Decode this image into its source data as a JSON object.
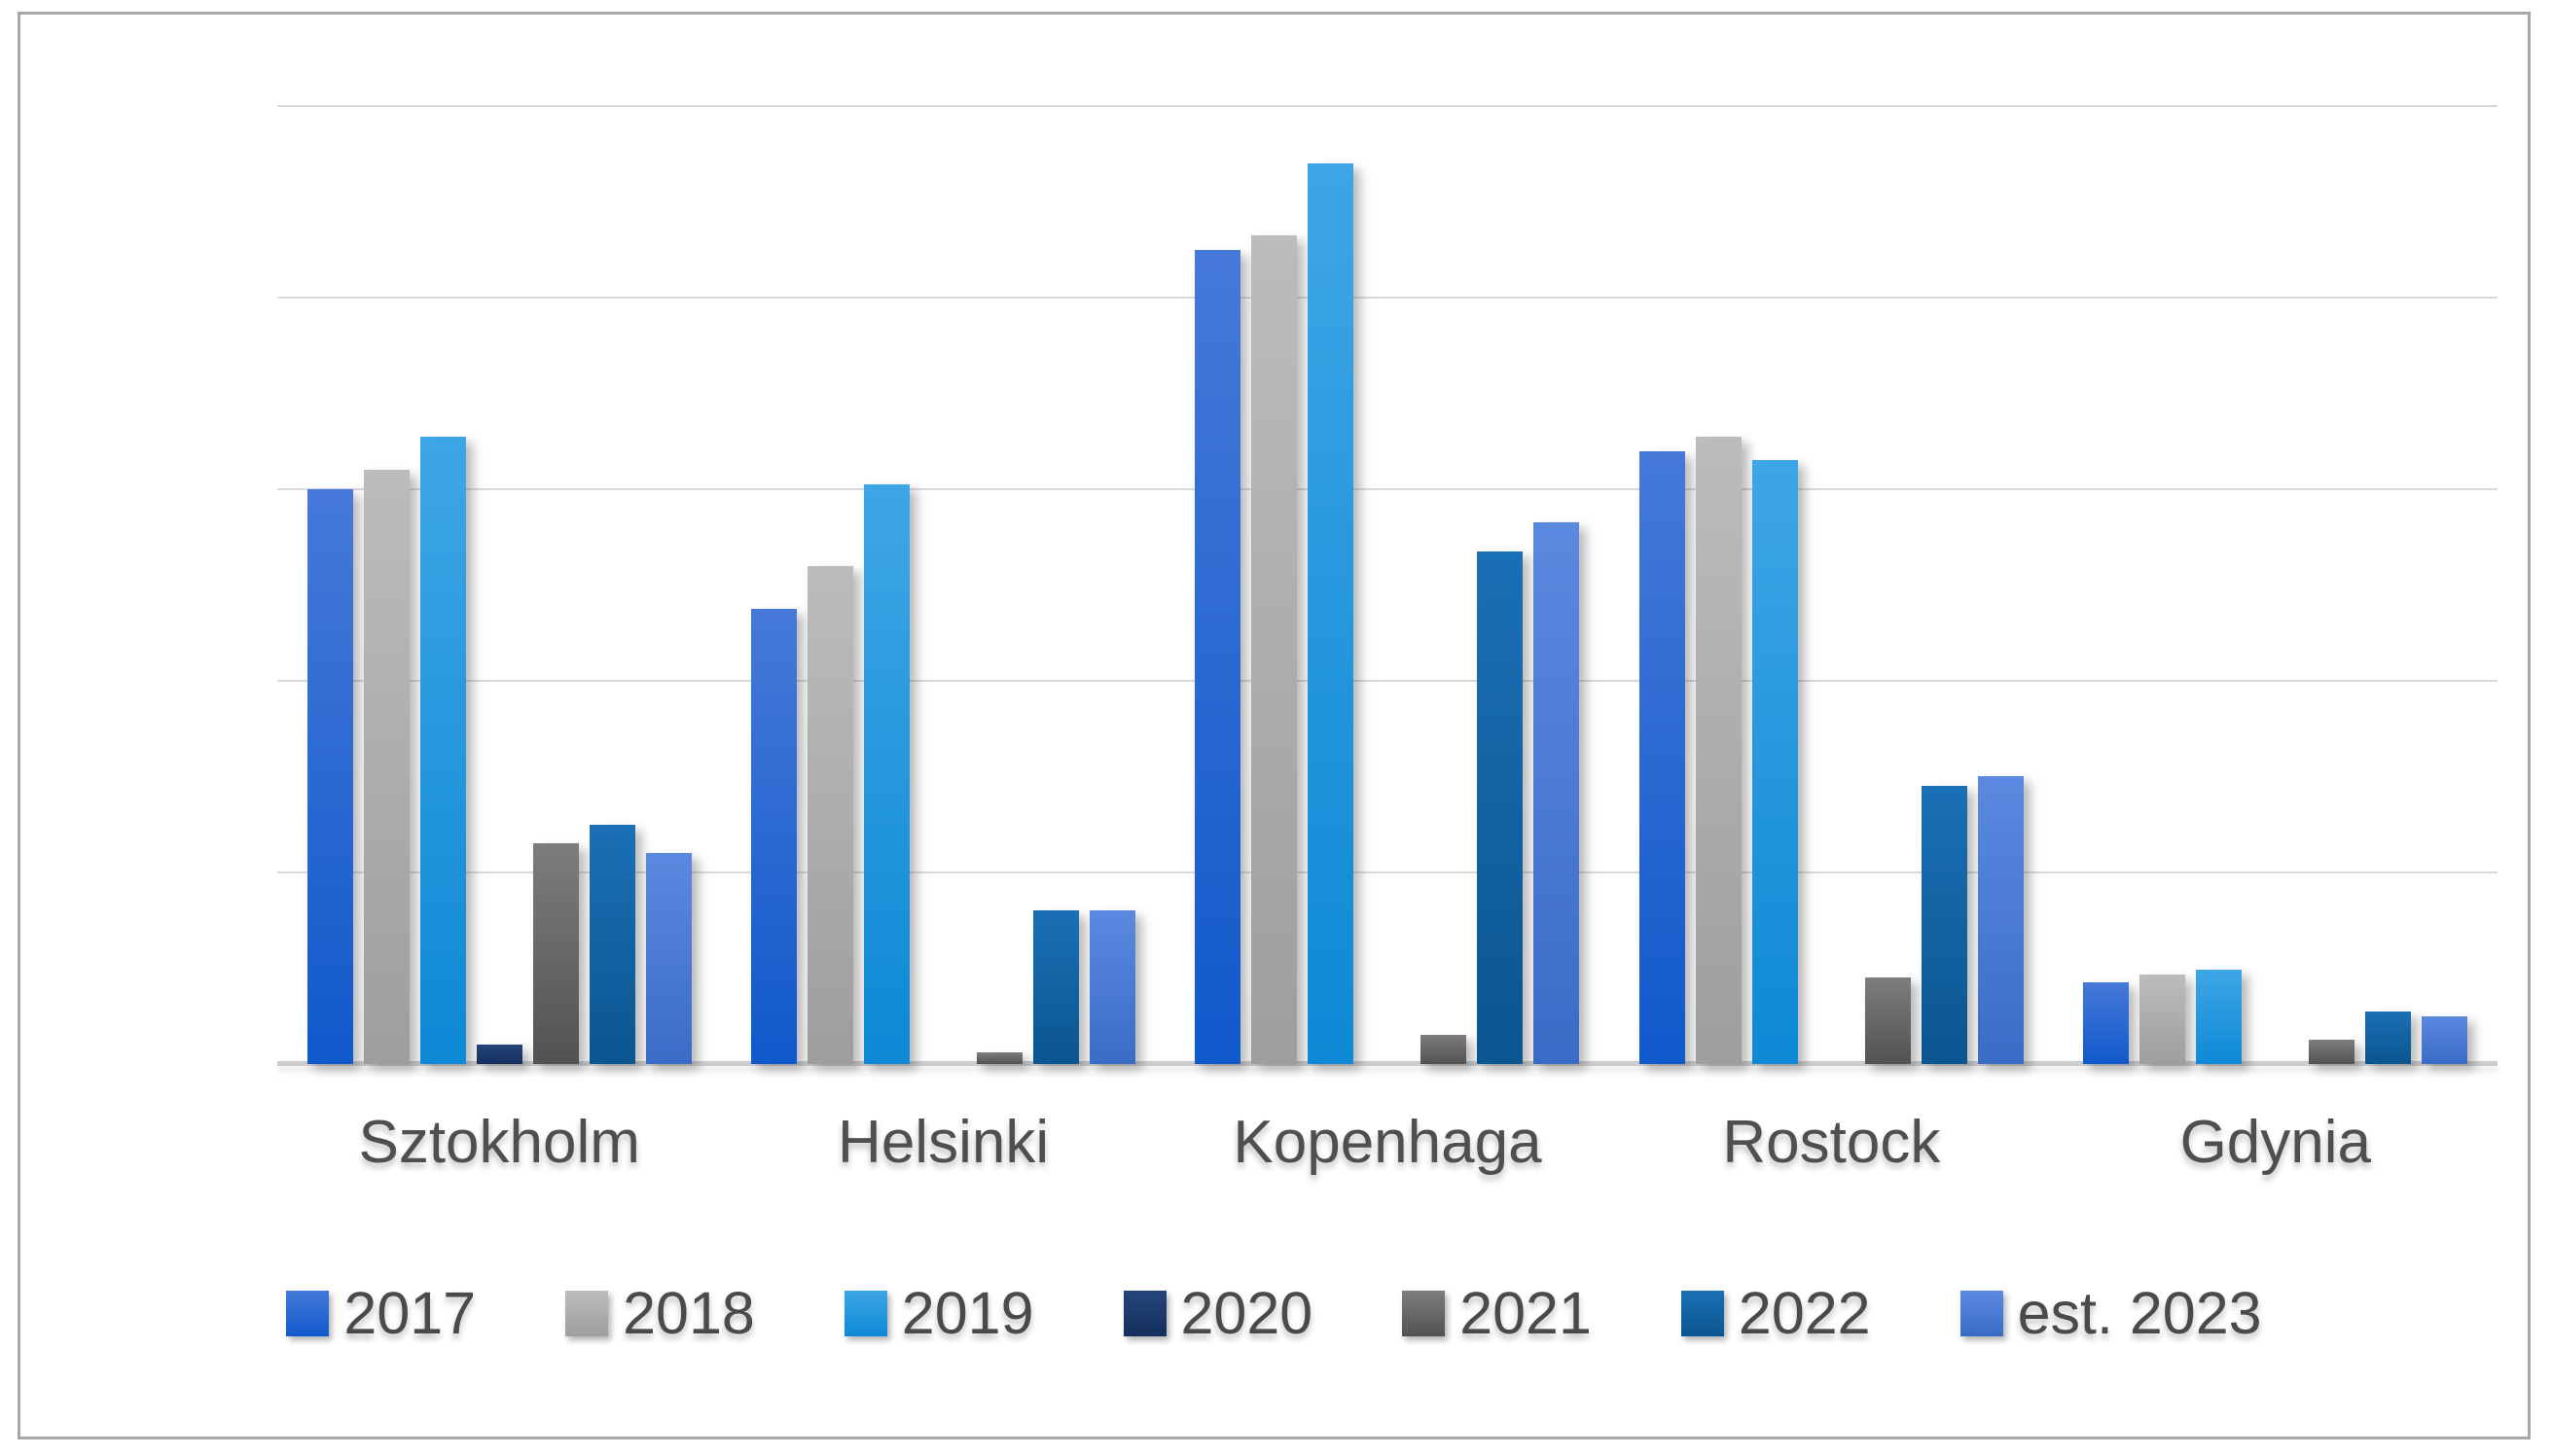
{
  "chart_data": {
    "type": "bar",
    "title": "",
    "xlabel": "",
    "ylabel": "",
    "categories": [
      "Sztokholm",
      "Helsinki",
      "Kopenhaga",
      "Rostock",
      "Gdynia"
    ],
    "series": [
      {
        "name": "2017",
        "color_top": "#4679d8",
        "color_bottom": "#1059cb",
        "values": [
          600,
          475,
          850,
          640,
          85
        ]
      },
      {
        "name": "2018",
        "color_top": "#bcbcbc",
        "color_bottom": "#9e9e9e",
        "values": [
          620,
          520,
          865,
          655,
          93
        ]
      },
      {
        "name": "2019",
        "color_top": "#3ea6e6",
        "color_bottom": "#0d89d5",
        "values": [
          655,
          605,
          940,
          630,
          98
        ]
      },
      {
        "name": "2020",
        "color_top": "#25457a",
        "color_bottom": "#142f5d",
        "values": [
          20,
          0,
          0,
          0,
          0
        ]
      },
      {
        "name": "2021",
        "color_top": "#7d7d7d",
        "color_bottom": "#525252",
        "values": [
          230,
          12,
          30,
          90,
          25
        ]
      },
      {
        "name": "2022",
        "color_top": "#1a70b5",
        "color_bottom": "#0b5590",
        "values": [
          250,
          160,
          535,
          290,
          55
        ]
      },
      {
        "name": "est. 2023",
        "color_top": "#5b89e0",
        "color_bottom": "#3a6cc7",
        "values": [
          220,
          160,
          565,
          300,
          50
        ]
      }
    ],
    "ylim": [
      0,
      1000
    ],
    "yticks": [
      0,
      200,
      400,
      600,
      800,
      1000
    ],
    "grid": true,
    "legend_position": "bottom",
    "plot_colors": {
      "gridline": "#d9d9d9",
      "axis_line": "#cdcdcd",
      "tick_label": "#4f4f4f",
      "frame_border": "#a7a7a7",
      "background": "#ffffff"
    }
  }
}
